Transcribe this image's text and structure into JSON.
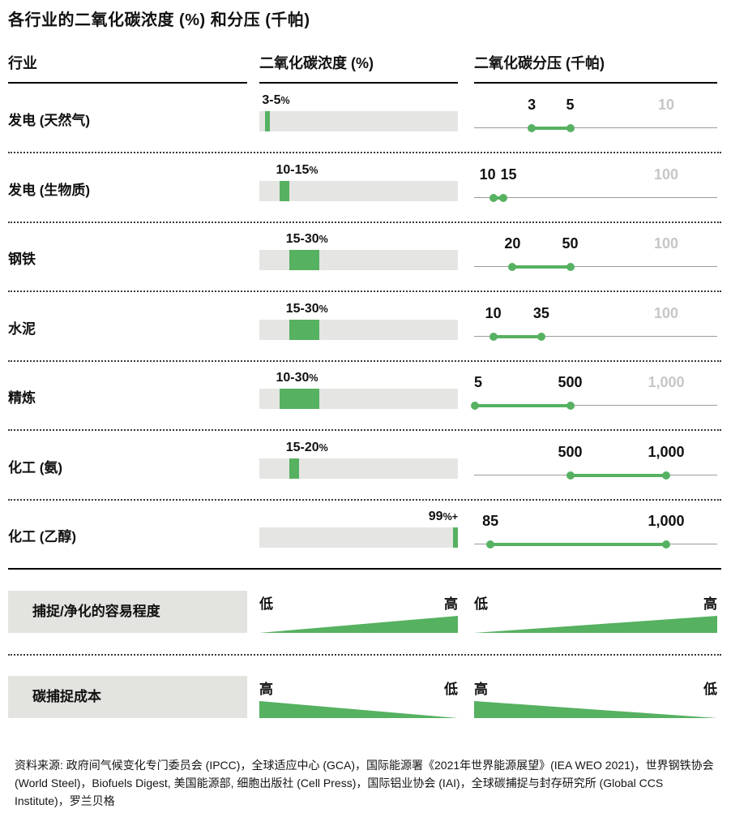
{
  "title": "各行业的二氧化碳浓度 (%) 和分压 (千帕)",
  "header": {
    "industry": "行业",
    "concentration": "二氧化碳浓度 (%)",
    "pressure": "二氧化碳分压 (千帕)"
  },
  "rows": [
    {
      "industry": "发电 (天然气)",
      "concentration_label": "3-5",
      "concentration_suffix": "%",
      "concentration_pct_range": [
        3,
        5
      ],
      "pressure_labels": [
        "3",
        "5"
      ],
      "pressure_kpa_range": [
        3,
        5
      ],
      "pressure_scale_max": 10,
      "pressure_max_label": "10"
    },
    {
      "industry": "发电 (生物质)",
      "concentration_label": "10-15",
      "concentration_suffix": "%",
      "concentration_pct_range": [
        10,
        15
      ],
      "pressure_labels": [
        "10",
        "15"
      ],
      "pressure_kpa_range": [
        10,
        15
      ],
      "pressure_scale_max": 100,
      "pressure_max_label": "100"
    },
    {
      "industry": "钢铁",
      "concentration_label": "15-30",
      "concentration_suffix": "%",
      "concentration_pct_range": [
        15,
        30
      ],
      "pressure_labels": [
        "20",
        "50"
      ],
      "pressure_kpa_range": [
        20,
        50
      ],
      "pressure_scale_max": 100,
      "pressure_max_label": "100"
    },
    {
      "industry": "水泥",
      "concentration_label": "15-30",
      "concentration_suffix": "%",
      "concentration_pct_range": [
        15,
        30
      ],
      "pressure_labels": [
        "10",
        "35"
      ],
      "pressure_kpa_range": [
        10,
        35
      ],
      "pressure_scale_max": 100,
      "pressure_max_label": "100"
    },
    {
      "industry": "精炼",
      "concentration_label": "10-30",
      "concentration_suffix": "%",
      "concentration_pct_range": [
        10,
        30
      ],
      "pressure_labels": [
        "5",
        "500"
      ],
      "pressure_kpa_range": [
        5,
        500
      ],
      "pressure_scale_max": 1000,
      "pressure_max_label": "1,000"
    },
    {
      "industry": "化工 (氨)",
      "concentration_label": "15-20",
      "concentration_suffix": "%",
      "concentration_pct_range": [
        15,
        20
      ],
      "pressure_labels": [
        "500",
        "1,000"
      ],
      "pressure_kpa_range": [
        500,
        1000
      ],
      "pressure_scale_max": 1000,
      "pressure_max_label": ""
    },
    {
      "industry": "化工 (乙醇)",
      "concentration_label": "99",
      "concentration_suffix": "%+",
      "concentration_pct_range": [
        99,
        100
      ],
      "pressure_labels": [
        "85",
        "1,000"
      ],
      "pressure_kpa_range": [
        85,
        1000
      ],
      "pressure_scale_max": 1000,
      "pressure_max_label": ""
    }
  ],
  "legend": [
    {
      "label": "捕捉/净化的容易程度",
      "left_label": "低",
      "right_label": "高",
      "direction": "up"
    },
    {
      "label": "碳捕捉成本",
      "left_label": "高",
      "right_label": "低",
      "direction": "down"
    }
  ],
  "source": "资料来源: 政府间气候变化专门委员会 (IPCC)，全球适应中心 (GCA)，国际能源署《2021年世界能源展望》(IEA WEO 2021)，世界钢铁协会 (World Steel)，Biofuels Digest, 美国能源部, 细胞出版社 (Cell Press)，国际铝业协会 (IAI)，全球碳捕捉与封存研究所 (Global CCS Institute)，罗兰贝格",
  "colors": {
    "green": "#56b161",
    "bar_track_gray": "#e5e5e3",
    "label_box_gray": "#e3e3e0",
    "axis_line_gray": "#9b9b9b",
    "scale_max_text_gray": "#c6c6c6",
    "text": "#111111"
  },
  "chart_data": {
    "type": "table",
    "title": "各行业的二氧化碳浓度 (%) 和分压 (千帕)",
    "columns": [
      "行业",
      "二氧化碳浓度 (%)",
      "二氧化碳分压 (千帕)"
    ],
    "rows": [
      {
        "industry": "发电 (天然气)",
        "co2_concentration_pct": [
          3,
          5
        ],
        "co2_concentration_note": "3-5%",
        "co2_partial_pressure_kpa": [
          3,
          5
        ],
        "pressure_axis_max_kpa": 10
      },
      {
        "industry": "发电 (生物质)",
        "co2_concentration_pct": [
          10,
          15
        ],
        "co2_concentration_note": "10-15%",
        "co2_partial_pressure_kpa": [
          10,
          15
        ],
        "pressure_axis_max_kpa": 100
      },
      {
        "industry": "钢铁",
        "co2_concentration_pct": [
          15,
          30
        ],
        "co2_concentration_note": "15-30%",
        "co2_partial_pressure_kpa": [
          20,
          50
        ],
        "pressure_axis_max_kpa": 100
      },
      {
        "industry": "水泥",
        "co2_concentration_pct": [
          15,
          30
        ],
        "co2_concentration_note": "15-30%",
        "co2_partial_pressure_kpa": [
          10,
          35
        ],
        "pressure_axis_max_kpa": 100
      },
      {
        "industry": "精炼",
        "co2_concentration_pct": [
          10,
          30
        ],
        "co2_concentration_note": "10-30%",
        "co2_partial_pressure_kpa": [
          5,
          500
        ],
        "pressure_axis_max_kpa": 1000
      },
      {
        "industry": "化工 (氨)",
        "co2_concentration_pct": [
          15,
          20
        ],
        "co2_concentration_note": "15-20%",
        "co2_partial_pressure_kpa": [
          500,
          1000
        ],
        "pressure_axis_max_kpa": 1000
      },
      {
        "industry": "化工 (乙醇)",
        "co2_concentration_pct": [
          99,
          100
        ],
        "co2_concentration_note": "99%+",
        "co2_partial_pressure_kpa": [
          85,
          1000
        ],
        "pressure_axis_max_kpa": 1000
      }
    ],
    "annotations": [
      {
        "label": "捕捉/净化的容易程度",
        "gradient": "低 → 高 (从左到右递增)"
      },
      {
        "label": "碳捕捉成本",
        "gradient": "高 → 低 (从左到右递减)"
      }
    ],
    "legend_position": "bottom",
    "grid": false
  }
}
